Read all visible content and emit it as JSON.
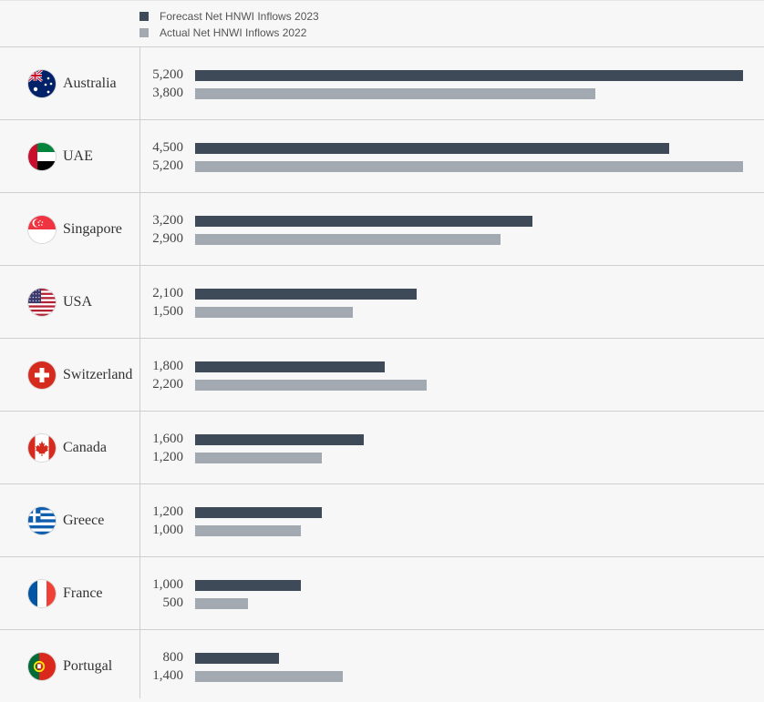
{
  "chart_data": {
    "type": "bar",
    "orientation": "horizontal",
    "legend": "top-left",
    "xlim": [
      0,
      5200
    ],
    "colors": {
      "forecast": "#3e4a57",
      "actual": "#a3a9b0"
    },
    "categories": [
      "Australia",
      "UAE",
      "Singapore",
      "USA",
      "Switzerland",
      "Canada",
      "Greece",
      "France",
      "Portugal"
    ],
    "flag_icons": [
      "australia-flag-icon",
      "uae-flag-icon",
      "singapore-flag-icon",
      "usa-flag-icon",
      "switzerland-flag-icon",
      "canada-flag-icon",
      "greece-flag-icon",
      "france-flag-icon",
      "portugal-flag-icon"
    ],
    "series": [
      {
        "name": "Forecast Net HNWI Inflows 2023",
        "values": [
          5200,
          4500,
          3200,
          2100,
          1800,
          1600,
          1200,
          1000,
          800
        ],
        "labels": [
          "5,200",
          "4,500",
          "3,200",
          "2,100",
          "1,800",
          "1,600",
          "1,200",
          "1,000",
          "800"
        ]
      },
      {
        "name": "Actual Net HNWI Inflows 2022",
        "values": [
          3800,
          5200,
          2900,
          1500,
          2200,
          1200,
          1000,
          500,
          1400
        ],
        "labels": [
          "3,800",
          "5,200",
          "2,900",
          "1,500",
          "2,200",
          "1,200",
          "1,000",
          "500",
          "1,400"
        ]
      }
    ]
  }
}
